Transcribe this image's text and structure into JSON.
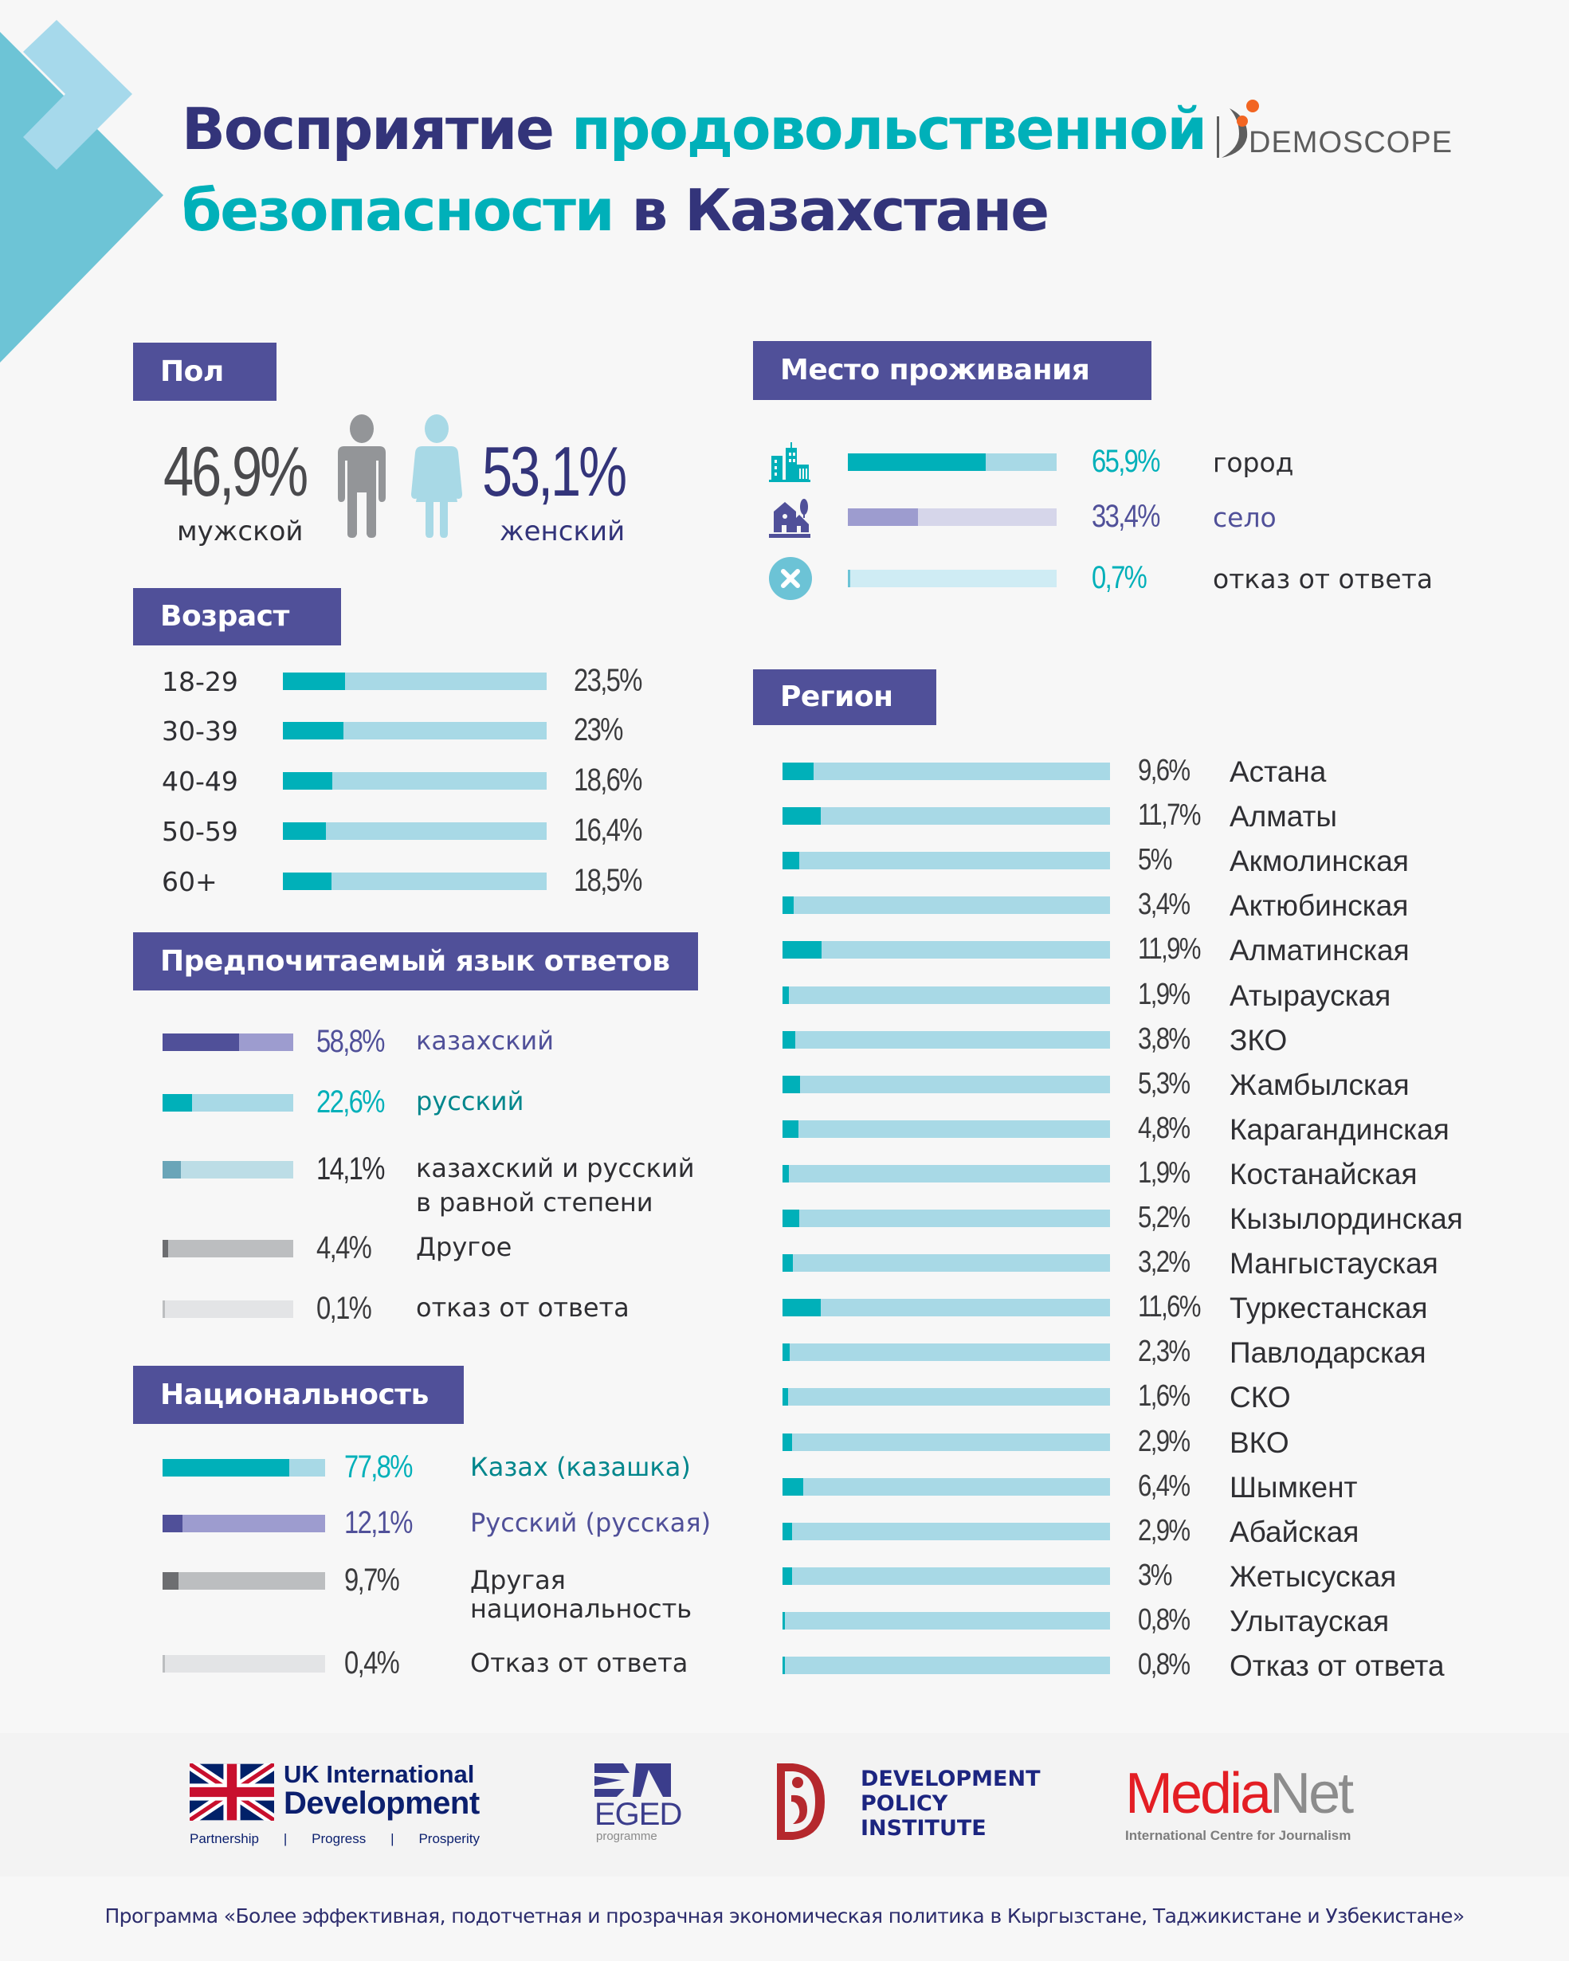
{
  "header": {
    "title_line1_part1": "Восприятие",
    "title_line1_part2": "продовольственной",
    "title_line2_part1": "безопасности",
    "title_line2_part2": "в Казахстане",
    "logo_demoscope": "DEMOSCOPE"
  },
  "colors": {
    "navy": "#33347a",
    "teal": "#00b0b9",
    "header_box": "#505099",
    "bar_light_blue": "#a8d9e6",
    "purple_dark": "#505099",
    "purple_light": "#9d9ccf",
    "gray_dark": "#6d6e71",
    "gray_light": "#bcbec0"
  },
  "gender": {
    "heading": "Пол",
    "male_pct": "46,9%",
    "male_label": "мужской",
    "female_pct": "53,1%",
    "female_label": "женский",
    "male_value": 46.9,
    "female_value": 53.1
  },
  "age": {
    "heading": "Возраст",
    "rows": [
      {
        "label": "18-29",
        "pct": "23,5%",
        "value": 23.5
      },
      {
        "label": "30-39",
        "pct": "23%",
        "value": 23
      },
      {
        "label": "40-49",
        "pct": "18,6%",
        "value": 18.6
      },
      {
        "label": "50-59",
        "pct": "16,4%",
        "value": 16.4
      },
      {
        "label": "60+",
        "pct": "18,5%",
        "value": 18.5
      }
    ]
  },
  "language": {
    "heading": "Предпочитаемый язык ответов",
    "rows": [
      {
        "label": "казахский",
        "pct": "58,8%",
        "value": 58.8,
        "fill": "#505099",
        "track": "#9d9ccf",
        "pct_color": "#505099",
        "label_color": "#505099"
      },
      {
        "label": "русский",
        "pct": "22,6%",
        "value": 22.6,
        "fill": "#00b0b9",
        "track": "#a8d9e6",
        "pct_color": "#00b0b9",
        "label_color": "#00868c"
      },
      {
        "label": "казахский и русский",
        "label2": "в равной степени",
        "pct": "14,1%",
        "value": 14.1,
        "fill": "#6aa5b8",
        "track": "#bcdde6",
        "pct_color": "#2f2f33",
        "label_color": "#2f2f33"
      },
      {
        "label": "Другое",
        "pct": "4,4%",
        "value": 4.4,
        "fill": "#6d6e71",
        "track": "#bcbec0",
        "pct_color": "#3b3b3d",
        "label_color": "#2f2f33"
      },
      {
        "label": "отказ от ответа",
        "pct": "0,1%",
        "value": 0.1,
        "fill": "#bcbec0",
        "track": "#e3e4e6",
        "pct_color": "#3b3b3d",
        "label_color": "#2f2f33"
      }
    ]
  },
  "nationality": {
    "heading": "Национальность",
    "rows": [
      {
        "label": "Казах (казашка)",
        "pct": "77,8%",
        "value": 77.8,
        "fill": "#00b0b9",
        "track": "#a8d9e6",
        "pct_color": "#00b0b9",
        "label_color": "#00868c"
      },
      {
        "label": "Русский (русская)",
        "pct": "12,1%",
        "value": 12.1,
        "fill": "#505099",
        "track": "#9d9ccf",
        "pct_color": "#505099",
        "label_color": "#505099"
      },
      {
        "label": "Другая",
        "label2": "национальность",
        "pct": "9,7%",
        "value": 9.7,
        "fill": "#6d6e71",
        "track": "#bcbec0",
        "pct_color": "#3b3b3d",
        "label_color": "#2f2f33"
      },
      {
        "label": "Отказ от ответа",
        "pct": "0,4%",
        "value": 0.4,
        "fill": "#bcbec0",
        "track": "#e3e4e6",
        "pct_color": "#3b3b3d",
        "label_color": "#2f2f33"
      }
    ]
  },
  "residence": {
    "heading": "Место проживания",
    "rows": [
      {
        "icon": "city-icon",
        "label": "город",
        "pct": "65,9%",
        "value": 65.9,
        "fill": "#00b0b9",
        "track": "#a8d9e6",
        "pct_color": "#00b0b9",
        "label_color": "#2f2f33"
      },
      {
        "icon": "village-icon",
        "label": "село",
        "pct": "33,4%",
        "value": 33.4,
        "fill": "#9d9ccf",
        "track": "#d6d6ea",
        "pct_color": "#505099",
        "label_color": "#505099"
      },
      {
        "icon": "refusal-x-icon",
        "label": "отказ от ответа",
        "pct": "0,7%",
        "value": 0.7,
        "fill": "#6cc3d6",
        "track": "#cfecf4",
        "pct_color": "#00b0b9",
        "label_color": "#2f2f33"
      }
    ]
  },
  "region": {
    "heading": "Регион",
    "rows": [
      {
        "label": "Астана",
        "pct": "9,6%",
        "value": 9.6
      },
      {
        "label": "Алматы",
        "pct": "11,7%",
        "value": 11.7
      },
      {
        "label": "Акмолинская",
        "pct": "5%",
        "value": 5
      },
      {
        "label": "Актюбинская",
        "pct": "3,4%",
        "value": 3.4
      },
      {
        "label": "Алматинская",
        "pct": "11,9%",
        "value": 11.9
      },
      {
        "label": "Атырауская",
        "pct": "1,9%",
        "value": 1.9
      },
      {
        "label": "ЗКО",
        "pct": "3,8%",
        "value": 3.8
      },
      {
        "label": "Жамбылская",
        "pct": "5,3%",
        "value": 5.3
      },
      {
        "label": "Карагандинская",
        "pct": "4,8%",
        "value": 4.8
      },
      {
        "label": "Костанайская",
        "pct": "1,9%",
        "value": 1.9
      },
      {
        "label": "Кызылординская",
        "pct": "5,2%",
        "value": 5.2
      },
      {
        "label": "Мангыстауская",
        "pct": "3,2%",
        "value": 3.2
      },
      {
        "label": "Туркестанская",
        "pct": "11,6%",
        "value": 11.6
      },
      {
        "label": "Павлодарская",
        "pct": "2,3%",
        "value": 2.3
      },
      {
        "label": "СКО",
        "pct": "1,6%",
        "value": 1.6
      },
      {
        "label": "ВКО",
        "pct": "2,9%",
        "value": 2.9
      },
      {
        "label": "Шымкент",
        "pct": "6,4%",
        "value": 6.4
      },
      {
        "label": "Абайская",
        "pct": "2,9%",
        "value": 2.9
      },
      {
        "label": "Жетысуская",
        "pct": "3%",
        "value": 3
      },
      {
        "label": "Улытауская",
        "pct": "0,8%",
        "value": 0.8
      },
      {
        "label": "Отказ от ответа",
        "pct": "0,8%",
        "value": 0.8
      }
    ]
  },
  "footer": {
    "uk_line1": "UK International",
    "uk_line2": "Development",
    "uk_tag1": "Partnership",
    "uk_sep": "|",
    "uk_tag2": "Progress",
    "uk_tag3": "Prosperity",
    "eged_name": "EGED",
    "eged_sub": "programme",
    "dpi_line1": "DEVELOPMENT",
    "dpi_line2": "POLICY",
    "dpi_line3": "INSTITUTE",
    "medianet_media": "Media",
    "medianet_net": "Net",
    "medianet_sub": "International Centre for Journalism",
    "caption": "Программа «Более эффективная, подотчетная и прозрачная экономическая политика в Кыргызстане, Таджикистане и Узбекистане»"
  }
}
